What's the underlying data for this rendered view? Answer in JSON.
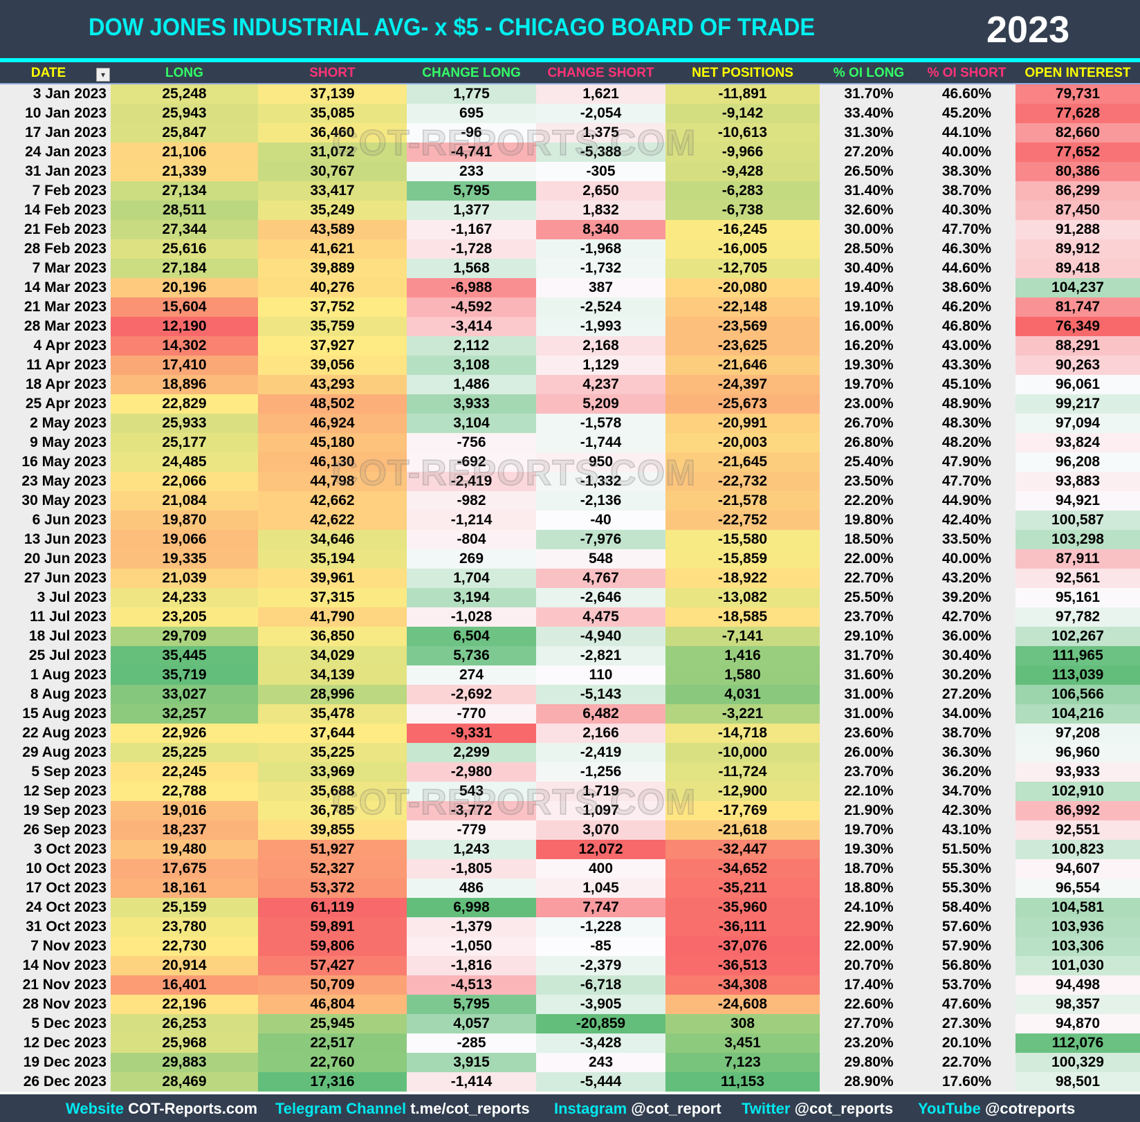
{
  "header": {
    "title": "DOW JONES INDUSTRIAL AVG- x $5 - CHICAGO BOARD OF TRADE",
    "year": "2023"
  },
  "watermark": "COT-REPORTS.COM",
  "columns": [
    {
      "label": "DATE",
      "color": "#ffff00"
    },
    {
      "label": "LONG",
      "color": "#33ff66"
    },
    {
      "label": "SHORT",
      "color": "#ff3377"
    },
    {
      "label": "CHANGE LONG",
      "color": "#33ff66"
    },
    {
      "label": "CHANGE SHORT",
      "color": "#ff3377"
    },
    {
      "label": "NET POSITIONS",
      "color": "#ffff00"
    },
    {
      "label": "% OI LONG",
      "color": "#33ff66"
    },
    {
      "label": "% OI SHORT",
      "color": "#ff3377"
    },
    {
      "label": "OPEN INTEREST",
      "color": "#ffff00"
    }
  ],
  "colors": {
    "red": "#f8696b",
    "yellow": "#ffeb84",
    "green": "#63be7b",
    "white": "#fcfcff",
    "header_bg": "#333f50",
    "accent": "#00ffff"
  },
  "chart_data": {
    "type": "table",
    "title": "DOW JONES INDUSTRIAL AVG- x $5 - CHICAGO BOARD OF TRADE",
    "columns": [
      "DATE",
      "LONG",
      "SHORT",
      "CHANGE LONG",
      "CHANGE SHORT",
      "NET POSITIONS",
      "% OI LONG",
      "% OI SHORT",
      "OPEN INTEREST"
    ],
    "rows": [
      [
        "3 Jan 2023",
        "25,248",
        "37,139",
        "1,775",
        "1,621",
        "-11,891",
        "31.70%",
        "46.60%",
        "79,731"
      ],
      [
        "10 Jan 2023",
        "25,943",
        "35,085",
        "695",
        "-2,054",
        "-9,142",
        "33.40%",
        "45.20%",
        "77,628"
      ],
      [
        "17 Jan 2023",
        "25,847",
        "36,460",
        "-96",
        "1,375",
        "-10,613",
        "31.30%",
        "44.10%",
        "82,660"
      ],
      [
        "24 Jan 2023",
        "21,106",
        "31,072",
        "-4,741",
        "-5,388",
        "-9,966",
        "27.20%",
        "40.00%",
        "77,652"
      ],
      [
        "31 Jan 2023",
        "21,339",
        "30,767",
        "233",
        "-305",
        "-9,428",
        "26.50%",
        "38.30%",
        "80,386"
      ],
      [
        "7 Feb 2023",
        "27,134",
        "33,417",
        "5,795",
        "2,650",
        "-6,283",
        "31.40%",
        "38.70%",
        "86,299"
      ],
      [
        "14 Feb 2023",
        "28,511",
        "35,249",
        "1,377",
        "1,832",
        "-6,738",
        "32.60%",
        "40.30%",
        "87,450"
      ],
      [
        "21 Feb 2023",
        "27,344",
        "43,589",
        "-1,167",
        "8,340",
        "-16,245",
        "30.00%",
        "47.70%",
        "91,288"
      ],
      [
        "28 Feb 2023",
        "25,616",
        "41,621",
        "-1,728",
        "-1,968",
        "-16,005",
        "28.50%",
        "46.30%",
        "89,912"
      ],
      [
        "7 Mar 2023",
        "27,184",
        "39,889",
        "1,568",
        "-1,732",
        "-12,705",
        "30.40%",
        "44.60%",
        "89,418"
      ],
      [
        "14 Mar 2023",
        "20,196",
        "40,276",
        "-6,988",
        "387",
        "-20,080",
        "19.40%",
        "38.60%",
        "104,237"
      ],
      [
        "21 Mar 2023",
        "15,604",
        "37,752",
        "-4,592",
        "-2,524",
        "-22,148",
        "19.10%",
        "46.20%",
        "81,747"
      ],
      [
        "28 Mar 2023",
        "12,190",
        "35,759",
        "-3,414",
        "-1,993",
        "-23,569",
        "16.00%",
        "46.80%",
        "76,349"
      ],
      [
        "4 Apr 2023",
        "14,302",
        "37,927",
        "2,112",
        "2,168",
        "-23,625",
        "16.20%",
        "43.00%",
        "88,291"
      ],
      [
        "11 Apr 2023",
        "17,410",
        "39,056",
        "3,108",
        "1,129",
        "-21,646",
        "19.30%",
        "43.30%",
        "90,263"
      ],
      [
        "18 Apr 2023",
        "18,896",
        "43,293",
        "1,486",
        "4,237",
        "-24,397",
        "19.70%",
        "45.10%",
        "96,061"
      ],
      [
        "25 Apr 2023",
        "22,829",
        "48,502",
        "3,933",
        "5,209",
        "-25,673",
        "23.00%",
        "48.90%",
        "99,217"
      ],
      [
        "2 May 2023",
        "25,933",
        "46,924",
        "3,104",
        "-1,578",
        "-20,991",
        "26.70%",
        "48.30%",
        "97,094"
      ],
      [
        "9 May 2023",
        "25,177",
        "45,180",
        "-756",
        "-1,744",
        "-20,003",
        "26.80%",
        "48.20%",
        "93,824"
      ],
      [
        "16 May 2023",
        "24,485",
        "46,130",
        "-692",
        "950",
        "-21,645",
        "25.40%",
        "47.90%",
        "96,208"
      ],
      [
        "23 May 2023",
        "22,066",
        "44,798",
        "-2,419",
        "-1,332",
        "-22,732",
        "23.50%",
        "47.70%",
        "93,883"
      ],
      [
        "30 May 2023",
        "21,084",
        "42,662",
        "-982",
        "-2,136",
        "-21,578",
        "22.20%",
        "44.90%",
        "94,921"
      ],
      [
        "6 Jun 2023",
        "19,870",
        "42,622",
        "-1,214",
        "-40",
        "-22,752",
        "19.80%",
        "42.40%",
        "100,587"
      ],
      [
        "13 Jun 2023",
        "19,066",
        "34,646",
        "-804",
        "-7,976",
        "-15,580",
        "18.50%",
        "33.50%",
        "103,298"
      ],
      [
        "20 Jun 2023",
        "19,335",
        "35,194",
        "269",
        "548",
        "-15,859",
        "22.00%",
        "40.00%",
        "87,911"
      ],
      [
        "27 Jun 2023",
        "21,039",
        "39,961",
        "1,704",
        "4,767",
        "-18,922",
        "22.70%",
        "43.20%",
        "92,561"
      ],
      [
        "3 Jul 2023",
        "24,233",
        "37,315",
        "3,194",
        "-2,646",
        "-13,082",
        "25.50%",
        "39.20%",
        "95,161"
      ],
      [
        "11 Jul 2023",
        "23,205",
        "41,790",
        "-1,028",
        "4,475",
        "-18,585",
        "23.70%",
        "42.70%",
        "97,782"
      ],
      [
        "18 Jul 2023",
        "29,709",
        "36,850",
        "6,504",
        "-4,940",
        "-7,141",
        "29.10%",
        "36.00%",
        "102,267"
      ],
      [
        "25 Jul 2023",
        "35,445",
        "34,029",
        "5,736",
        "-2,821",
        "1,416",
        "31.70%",
        "30.40%",
        "111,965"
      ],
      [
        "1 Aug 2023",
        "35,719",
        "34,139",
        "274",
        "110",
        "1,580",
        "31.60%",
        "30.20%",
        "113,039"
      ],
      [
        "8 Aug 2023",
        "33,027",
        "28,996",
        "-2,692",
        "-5,143",
        "4,031",
        "31.00%",
        "27.20%",
        "106,566"
      ],
      [
        "15 Aug 2023",
        "32,257",
        "35,478",
        "-770",
        "6,482",
        "-3,221",
        "31.00%",
        "34.00%",
        "104,216"
      ],
      [
        "22 Aug 2023",
        "22,926",
        "37,644",
        "-9,331",
        "2,166",
        "-14,718",
        "23.60%",
        "38.70%",
        "97,208"
      ],
      [
        "29 Aug 2023",
        "25,225",
        "35,225",
        "2,299",
        "-2,419",
        "-10,000",
        "26.00%",
        "36.30%",
        "96,960"
      ],
      [
        "5 Sep 2023",
        "22,245",
        "33,969",
        "-2,980",
        "-1,256",
        "-11,724",
        "23.70%",
        "36.20%",
        "93,933"
      ],
      [
        "12 Sep 2023",
        "22,788",
        "35,688",
        "543",
        "1,719",
        "-12,900",
        "22.10%",
        "34.70%",
        "102,910"
      ],
      [
        "19 Sep 2023",
        "19,016",
        "36,785",
        "-3,772",
        "1,097",
        "-17,769",
        "21.90%",
        "42.30%",
        "86,992"
      ],
      [
        "26 Sep 2023",
        "18,237",
        "39,855",
        "-779",
        "3,070",
        "-21,618",
        "19.70%",
        "43.10%",
        "92,551"
      ],
      [
        "3 Oct 2023",
        "19,480",
        "51,927",
        "1,243",
        "12,072",
        "-32,447",
        "19.30%",
        "51.50%",
        "100,823"
      ],
      [
        "10 Oct 2023",
        "17,675",
        "52,327",
        "-1,805",
        "400",
        "-34,652",
        "18.70%",
        "55.30%",
        "94,607"
      ],
      [
        "17 Oct 2023",
        "18,161",
        "53,372",
        "486",
        "1,045",
        "-35,211",
        "18.80%",
        "55.30%",
        "96,554"
      ],
      [
        "24 Oct 2023",
        "25,159",
        "61,119",
        "6,998",
        "7,747",
        "-35,960",
        "24.10%",
        "58.40%",
        "104,581"
      ],
      [
        "31 Oct 2023",
        "23,780",
        "59,891",
        "-1,379",
        "-1,228",
        "-36,111",
        "22.90%",
        "57.60%",
        "103,936"
      ],
      [
        "7 Nov 2023",
        "22,730",
        "59,806",
        "-1,050",
        "-85",
        "-37,076",
        "22.00%",
        "57.90%",
        "103,306"
      ],
      [
        "14 Nov 2023",
        "20,914",
        "57,427",
        "-1,816",
        "-2,379",
        "-36,513",
        "20.70%",
        "56.80%",
        "101,030"
      ],
      [
        "21 Nov 2023",
        "16,401",
        "50,709",
        "-4,513",
        "-6,718",
        "-34,308",
        "17.40%",
        "53.70%",
        "94,498"
      ],
      [
        "28 Nov 2023",
        "22,196",
        "46,804",
        "5,795",
        "-3,905",
        "-24,608",
        "22.60%",
        "47.60%",
        "98,357"
      ],
      [
        "5 Dec 2023",
        "26,253",
        "25,945",
        "4,057",
        "-20,859",
        "308",
        "27.70%",
        "27.30%",
        "94,870"
      ],
      [
        "12 Dec 2023",
        "25,968",
        "22,517",
        "-285",
        "-3,428",
        "3,451",
        "23.20%",
        "20.10%",
        "112,076"
      ],
      [
        "19 Dec 2023",
        "29,883",
        "22,760",
        "3,915",
        "243",
        "7,123",
        "29.80%",
        "22.70%",
        "100,329"
      ],
      [
        "26 Dec 2023",
        "28,469",
        "17,316",
        "-1,414",
        "-5,444",
        "11,153",
        "28.90%",
        "17.60%",
        "98,501"
      ]
    ]
  },
  "footer": [
    {
      "key": "Website",
      "value": "COT-Reports.com"
    },
    {
      "key": "Telegram Channel",
      "value": "t.me/cot_reports"
    },
    {
      "key": "Instagram",
      "value": "@cot_report"
    },
    {
      "key": "Twitter",
      "value": "@cot_reports"
    },
    {
      "key": "YouTube",
      "value": "@cotreports"
    }
  ]
}
